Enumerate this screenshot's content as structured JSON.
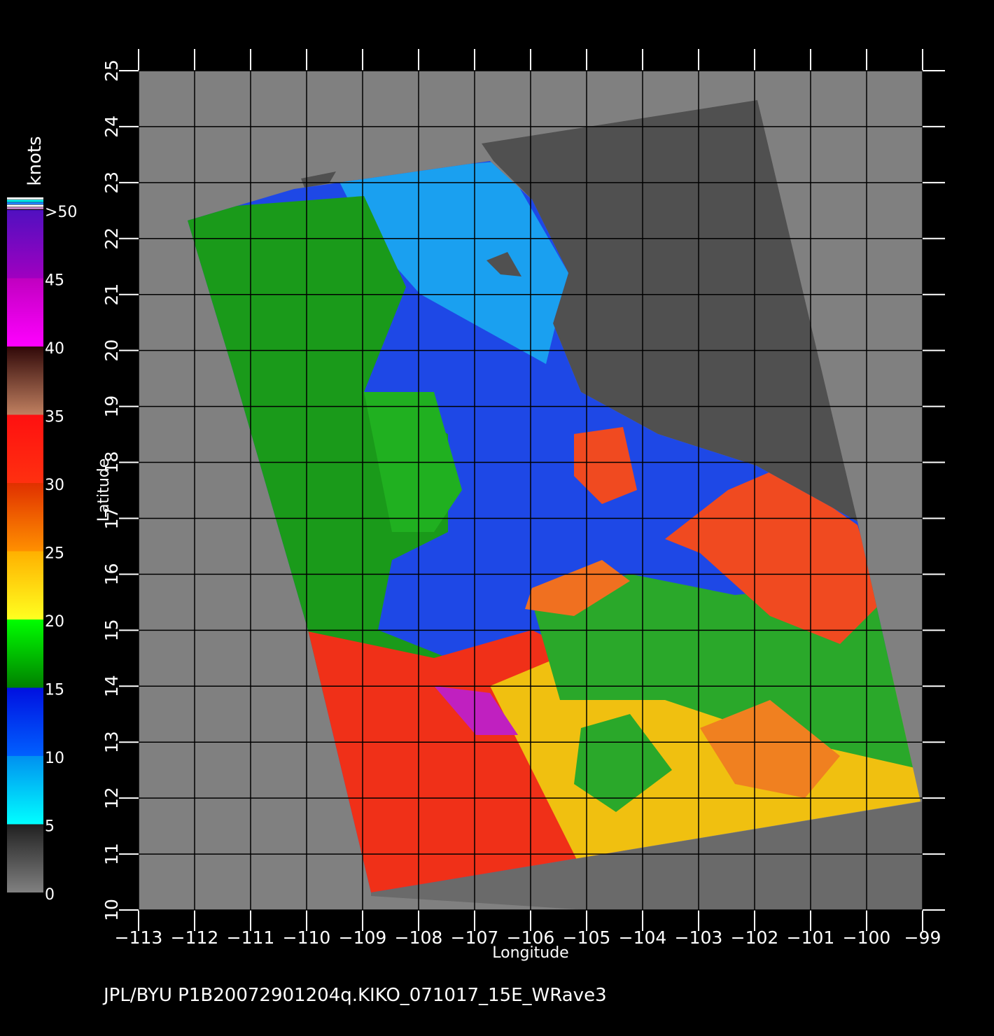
{
  "map": {
    "xlabel": "Longitude",
    "ylabel": "Latitude",
    "xlim": [
      -113,
      -99
    ],
    "ylim": [
      10,
      25
    ],
    "xticks": [
      {
        "value": -113,
        "label": "−113"
      },
      {
        "value": -112,
        "label": "−112"
      },
      {
        "value": -111,
        "label": "−111"
      },
      {
        "value": -110,
        "label": "−110"
      },
      {
        "value": -109,
        "label": "−109"
      },
      {
        "value": -108,
        "label": "−108"
      },
      {
        "value": -107,
        "label": "−107"
      },
      {
        "value": -106,
        "label": "−106"
      },
      {
        "value": -105,
        "label": "−105"
      },
      {
        "value": -104,
        "label": "−104"
      },
      {
        "value": -103,
        "label": "−103"
      },
      {
        "value": -102,
        "label": "−102"
      },
      {
        "value": -101,
        "label": "−101"
      },
      {
        "value": -100,
        "label": "−100"
      },
      {
        "value": -99,
        "label": "−99"
      }
    ],
    "yticks": [
      10,
      11,
      12,
      13,
      14,
      15,
      16,
      17,
      18,
      19,
      20,
      21,
      22,
      23,
      24,
      25
    ],
    "colorbar": {
      "title": "knots",
      "lim": [
        0,
        50
      ],
      "ticks": [
        0,
        5,
        10,
        15,
        20,
        25,
        30,
        35,
        40,
        45,
        {
          "value": 50,
          "label": ">50"
        }
      ]
    },
    "footer": "JPL/BYU  P1B20072901204q.KIKO_071017_15E_WRave3"
  }
}
